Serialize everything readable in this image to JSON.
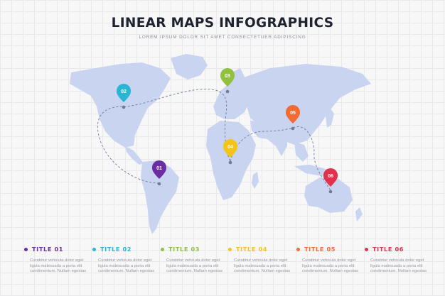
{
  "header": {
    "title": "LINEAR MAPS INFOGRAPHICS",
    "subtitle": "LOREM IPSUM DOLOR SIT AMET CONSECTETUER ADIPISCING"
  },
  "markers": [
    {
      "label": "01",
      "color": "#6a2ea2",
      "icon": "map-pin-icon"
    },
    {
      "label": "02",
      "color": "#2ab5d3",
      "icon": "map-pin-icon"
    },
    {
      "label": "03",
      "color": "#92c03f",
      "icon": "map-pin-icon"
    },
    {
      "label": "04",
      "color": "#f4c416",
      "icon": "map-pin-icon"
    },
    {
      "label": "05",
      "color": "#f26b32",
      "icon": "map-pin-icon"
    },
    {
      "label": "06",
      "color": "#e3304d",
      "icon": "map-pin-icon"
    }
  ],
  "legend": [
    {
      "title": "TITLE 01",
      "color": "#6a2ea2",
      "text": "Curabitur vehicula dolor eget ligula malesuada a porta elit condimentum. Nullam egestas"
    },
    {
      "title": "TITLE 02",
      "color": "#2ab5d3",
      "text": "Curabitur vehicula dolor eget ligula malesuada a porta elit condimentum. Nullam egestas"
    },
    {
      "title": "TITLE 03",
      "color": "#92c03f",
      "text": "Curabitur vehicula dolor eget ligula malesuada a porta elit condimentum. Nullam egestas"
    },
    {
      "title": "TITLE 04",
      "color": "#f4c416",
      "text": "Curabitur vehicula dolor eget ligula malesuada a porta elit condimentum. Nullam egestas"
    },
    {
      "title": "TITLE 05",
      "color": "#f26b32",
      "text": "Curabitur vehicula dolor eget ligula malesuada a porta elit condimentum. Nullam egestas"
    },
    {
      "title": "TITLE 06",
      "color": "#e3304d",
      "text": "Curabitur vehicula dolor eget ligula malesuada a porta elit condimentum. Nullam egestas"
    }
  ],
  "colors": {
    "land": "#c9d4f1",
    "route": "#6e7a99",
    "title": "#1f2330"
  }
}
